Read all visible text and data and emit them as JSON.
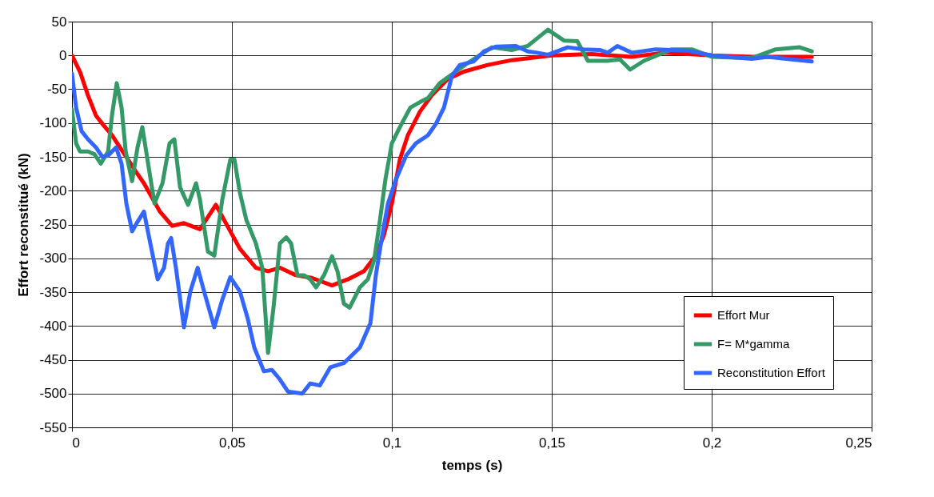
{
  "chart_data": {
    "type": "line",
    "xlabel": "temps (s)",
    "ylabel": "Effort reconstitué (kN)",
    "xlim": [
      0,
      0.25
    ],
    "ylim": [
      -550,
      50
    ],
    "xticks": [
      0,
      {
        "value": 0.05,
        "label": "0,05"
      },
      {
        "value": 0.1,
        "label": "0,1"
      },
      {
        "value": 0.15,
        "label": "0,15"
      },
      {
        "value": 0.2,
        "label": "0,2"
      },
      {
        "value": 0.25,
        "label": "0,25"
      }
    ],
    "yticks": [
      -550,
      -500,
      -450,
      -400,
      -350,
      -300,
      -250,
      -200,
      -150,
      -100,
      -50,
      0,
      50
    ],
    "grid": true,
    "legend": "bottom right",
    "marker": "none",
    "line_style": "solid",
    "series": [
      {
        "name": "Effort Mur",
        "color": "#ff0000",
        "x": [
          0,
          0.0025,
          0.005,
          0.0075,
          0.01,
          0.0125,
          0.015,
          0.0175,
          0.02,
          0.0225,
          0.0275,
          0.0313,
          0.035,
          0.04,
          0.045,
          0.0488,
          0.0525,
          0.0575,
          0.0613,
          0.065,
          0.07,
          0.075,
          0.0813,
          0.0863,
          0.0913,
          0.095,
          0.0975,
          0.1,
          0.1025,
          0.105,
          0.1088,
          0.1125,
          0.1175,
          0.1225,
          0.13,
          0.1375,
          0.15,
          0.1625,
          0.175,
          0.185,
          0.2,
          0.2125,
          0.225,
          0.2313
        ],
        "values": [
          0,
          -24,
          -59,
          -89,
          -104,
          -118,
          -136,
          -154,
          -172,
          -189,
          -231,
          -252,
          -248,
          -257,
          -221,
          -254,
          -286,
          -314,
          -319,
          -314,
          -325,
          -329,
          -340,
          -331,
          -319,
          -296,
          -266,
          -219,
          -154,
          -118,
          -83,
          -59,
          -35,
          -24,
          -14,
          -7,
          0,
          2,
          -2,
          4,
          0,
          -2,
          -2,
          -2
        ]
      },
      {
        "name": "F= M*gamma",
        "color": "#339966",
        "x": [
          0,
          0.0013,
          0.0025,
          0.005,
          0.007,
          0.009,
          0.0113,
          0.0125,
          0.014,
          0.0155,
          0.0168,
          0.0188,
          0.0205,
          0.022,
          0.0238,
          0.0258,
          0.0283,
          0.0305,
          0.032,
          0.0338,
          0.0363,
          0.0388,
          0.04,
          0.0425,
          0.0445,
          0.047,
          0.0495,
          0.0508,
          0.0525,
          0.0545,
          0.0575,
          0.0595,
          0.0613,
          0.063,
          0.065,
          0.067,
          0.0685,
          0.0705,
          0.0725,
          0.0745,
          0.0763,
          0.0788,
          0.0813,
          0.083,
          0.085,
          0.0868,
          0.09,
          0.0925,
          0.0945,
          0.0963,
          0.098,
          0.1,
          0.1025,
          0.1058,
          0.1088,
          0.1113,
          0.115,
          0.12,
          0.1238,
          0.1313,
          0.1375,
          0.1425,
          0.1488,
          0.1538,
          0.158,
          0.1613,
          0.1675,
          0.1713,
          0.1745,
          0.1788,
          0.1875,
          0.1938,
          0.2,
          0.2125,
          0.22,
          0.2275,
          0.2313
        ],
        "values": [
          -80,
          -130,
          -142,
          -142,
          -146,
          -160,
          -142,
          -89,
          -41,
          -77,
          -142,
          -186,
          -136,
          -106,
          -160,
          -219,
          -189,
          -130,
          -124,
          -195,
          -221,
          -189,
          -213,
          -290,
          -296,
          -213,
          -154,
          -154,
          -203,
          -243,
          -278,
          -314,
          -440,
          -373,
          -278,
          -269,
          -278,
          -325,
          -325,
          -331,
          -343,
          -325,
          -297,
          -319,
          -367,
          -373,
          -343,
          -331,
          -302,
          -243,
          -183,
          -130,
          -106,
          -77,
          -69,
          -63,
          -41,
          -24,
          -11,
          12,
          8,
          14,
          38,
          22,
          21,
          -8,
          -8,
          -6,
          -21,
          -8,
          9,
          9,
          -2,
          -4,
          9,
          12,
          6
        ]
      },
      {
        "name": "Reconstitution Effort",
        "color": "#3366ff",
        "x": [
          0,
          0.0013,
          0.003,
          0.005,
          0.0075,
          0.0095,
          0.0113,
          0.0138,
          0.0155,
          0.017,
          0.0188,
          0.0205,
          0.0225,
          0.0245,
          0.0268,
          0.0288,
          0.03,
          0.031,
          0.0325,
          0.035,
          0.037,
          0.0393,
          0.0413,
          0.0445,
          0.047,
          0.0495,
          0.0525,
          0.055,
          0.057,
          0.06,
          0.0625,
          0.065,
          0.0675,
          0.072,
          0.0745,
          0.0775,
          0.0808,
          0.085,
          0.09,
          0.0933,
          0.095,
          0.097,
          0.0988,
          0.1013,
          0.1045,
          0.1075,
          0.1113,
          0.1138,
          0.1163,
          0.1188,
          0.1213,
          0.1255,
          0.1288,
          0.1325,
          0.1388,
          0.1425,
          0.1455,
          0.1488,
          0.155,
          0.16,
          0.165,
          0.1675,
          0.1705,
          0.175,
          0.1825,
          0.1925,
          0.2,
          0.2125,
          0.2175,
          0.225,
          0.2313
        ],
        "values": [
          -27,
          -77,
          -112,
          -124,
          -136,
          -150,
          -148,
          -136,
          -160,
          -219,
          -260,
          -246,
          -231,
          -278,
          -331,
          -314,
          -278,
          -270,
          -314,
          -402,
          -349,
          -314,
          -349,
          -402,
          -361,
          -328,
          -349,
          -390,
          -432,
          -467,
          -465,
          -479,
          -497,
          -500,
          -485,
          -488,
          -461,
          -455,
          -432,
          -396,
          -325,
          -266,
          -219,
          -183,
          -148,
          -130,
          -118,
          -101,
          -77,
          -30,
          -14,
          -9,
          6,
          13,
          14,
          6,
          4,
          1,
          12,
          9,
          8,
          4,
          14,
          4,
          9,
          7,
          0,
          -5,
          -2,
          -6,
          -9
        ]
      }
    ]
  }
}
